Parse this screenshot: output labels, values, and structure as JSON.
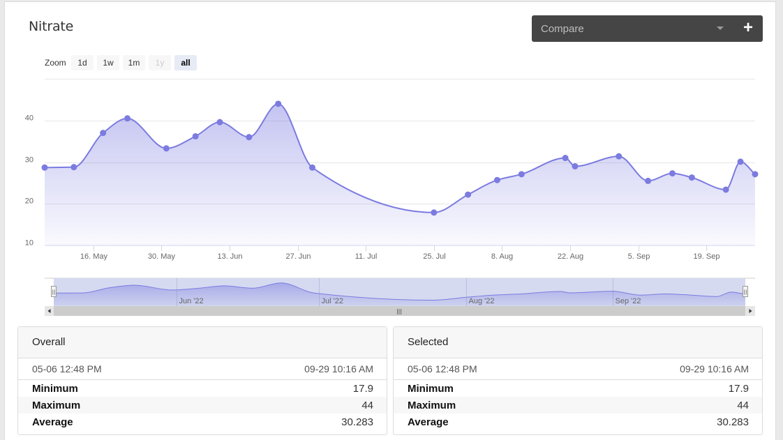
{
  "panel": {
    "title": "Nitrate",
    "compare": {
      "placeholder": "Compare",
      "icon": "chevron-down-icon",
      "add_icon": "plus-icon",
      "add_label": "+"
    }
  },
  "zoom": {
    "label": "Zoom",
    "buttons": [
      {
        "label": "1d",
        "state": "normal"
      },
      {
        "label": "1w",
        "state": "normal"
      },
      {
        "label": "1m",
        "state": "normal"
      },
      {
        "label": "1y",
        "state": "disabled"
      },
      {
        "label": "all",
        "state": "active"
      }
    ]
  },
  "chart_data": {
    "type": "area",
    "title": "",
    "xlabel": "",
    "ylabel": "",
    "ylim": [
      10,
      50
    ],
    "yticks": [
      10,
      20,
      30,
      40
    ],
    "xlim": [
      "2022-05-06",
      "2022-09-29"
    ],
    "xticks": [
      {
        "date": "2022-05-16",
        "label": "16. May"
      },
      {
        "date": "2022-05-30",
        "label": "30. May"
      },
      {
        "date": "2022-06-13",
        "label": "13. Jun"
      },
      {
        "date": "2022-06-27",
        "label": "27. Jun"
      },
      {
        "date": "2022-07-11",
        "label": "11. Jul"
      },
      {
        "date": "2022-07-25",
        "label": "25. Jul"
      },
      {
        "date": "2022-08-08",
        "label": "8. Aug"
      },
      {
        "date": "2022-08-22",
        "label": "22. Aug"
      },
      {
        "date": "2022-09-05",
        "label": "5. Sep"
      },
      {
        "date": "2022-09-19",
        "label": "19. Sep"
      }
    ],
    "grid": true,
    "legend": "none",
    "color": "#7b7be0",
    "series": [
      {
        "x": [
          "2022-05-06",
          "2022-05-12",
          "2022-05-18",
          "2022-05-23",
          "2022-05-31",
          "2022-06-06",
          "2022-06-11",
          "2022-06-17",
          "2022-06-23",
          "2022-06-30",
          "2022-07-25",
          "2022-08-01",
          "2022-08-07",
          "2022-08-12",
          "2022-08-21",
          "2022-08-23",
          "2022-09-01",
          "2022-09-07",
          "2022-09-12",
          "2022-09-16",
          "2022-09-23",
          "2022-09-26",
          "2022-09-29"
        ],
        "y": [
          28.7,
          28.8,
          37.0,
          40.5,
          33.3,
          36.2,
          39.6,
          36.0,
          44.0,
          28.7,
          17.9,
          22.2,
          25.7,
          27.1,
          31.0,
          29.0,
          31.4,
          25.5,
          27.3,
          26.3,
          23.4,
          30.1,
          27.1
        ]
      }
    ],
    "navigator": {
      "labels": [
        {
          "date": "2022-06-01",
          "label": "Jun '22"
        },
        {
          "date": "2022-07-01",
          "label": "Jul '22"
        },
        {
          "date": "2022-08-01",
          "label": "Aug '22"
        },
        {
          "date": "2022-09-01",
          "label": "Sep '22"
        }
      ],
      "scroll_grip": "|||",
      "handle_grip": "||"
    }
  },
  "stats": [
    {
      "title": "Overall",
      "start": "05-06 12:48 PM",
      "end": "09-29 10:16 AM",
      "rows": [
        {
          "label": "Minimum",
          "value": "17.9"
        },
        {
          "label": "Maximum",
          "value": "44"
        },
        {
          "label": "Average",
          "value": "30.283"
        }
      ]
    },
    {
      "title": "Selected",
      "start": "05-06 12:48 PM",
      "end": "09-29 10:16 AM",
      "rows": [
        {
          "label": "Minimum",
          "value": "17.9"
        },
        {
          "label": "Maximum",
          "value": "44"
        },
        {
          "label": "Average",
          "value": "30.283"
        }
      ]
    }
  ]
}
